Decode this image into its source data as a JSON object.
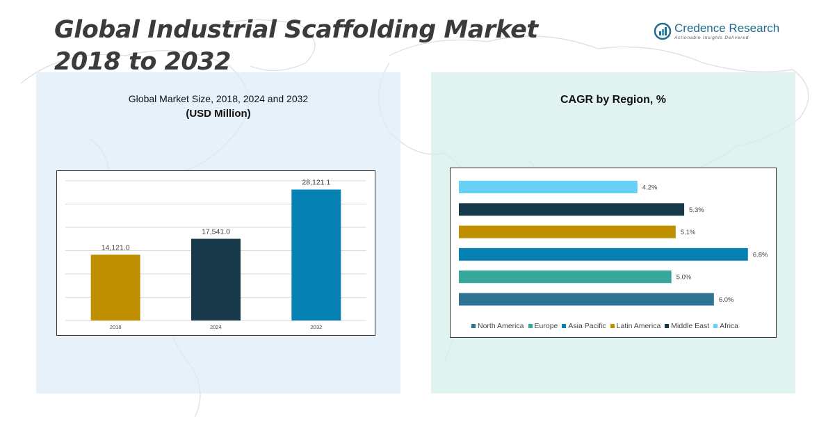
{
  "page": {
    "title": "Global Industrial Scaffolding Market 2018 to 2032",
    "logo": {
      "name": "Credence Research",
      "tagline": "Actionable Insights Delivered"
    }
  },
  "left_panel": {
    "title": "Global Market Size, 2018, 2024 and 2032",
    "subtitle": "(USD Million)"
  },
  "right_panel": {
    "title": "CAGR by Region, %"
  },
  "colors": {
    "gold": "#bf8f00",
    "dark_navy": "#17394a",
    "blue": "#0581b4",
    "teal": "#37a79c",
    "steel": "#2e7294",
    "sky": "#66d0f5"
  },
  "chart_data": [
    {
      "type": "bar",
      "title": "Global Market Size, 2018, 2024 and 2032",
      "subtitle": "(USD Million)",
      "categories": [
        "2018",
        "2024",
        "2032"
      ],
      "values": [
        14121.0,
        17541.0,
        28121.1
      ],
      "value_labels": [
        "14,121.0",
        "17,541.0",
        "28,121.1"
      ],
      "colors": [
        "#bf8f00",
        "#17394a",
        "#0581b4"
      ],
      "ylim": [
        0,
        30000
      ],
      "grid": true
    },
    {
      "type": "bar",
      "orientation": "horizontal",
      "title": "CAGR by Region, %",
      "categories": [
        "North America",
        "Europe",
        "Asia Pacific",
        "Latin America",
        "Middle East",
        "Africa"
      ],
      "values": [
        6.0,
        5.0,
        6.8,
        5.1,
        5.3,
        4.2
      ],
      "value_labels": [
        "6.0%",
        "5.0%",
        "6.8%",
        "5.1%",
        "5.3%",
        "4.2%"
      ],
      "colors": [
        "#2e7294",
        "#37a79c",
        "#0581b4",
        "#bf8f00",
        "#17394a",
        "#66d0f5"
      ],
      "xlim": [
        0,
        7
      ],
      "legend": "bottom",
      "grid": false
    }
  ]
}
